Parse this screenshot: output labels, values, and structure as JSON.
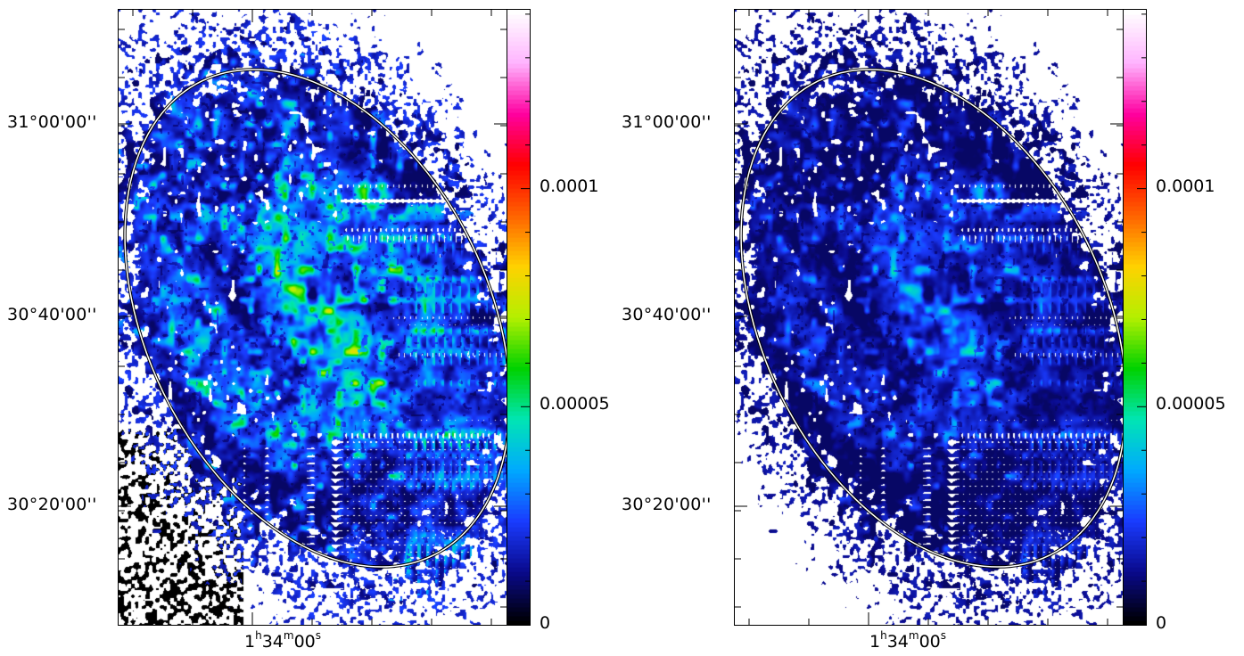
{
  "panels": [
    {
      "name": "left",
      "dec_ticks": [
        "31°00'00''",
        "30°40'00''",
        "30°20'00''"
      ],
      "ra_tick": {
        "h": "1",
        "hu": "h",
        "m": "34",
        "mu": "m",
        "s": "00",
        "su": "s"
      },
      "colorbar_ticks": [
        "0.0001",
        "0.00005",
        "0"
      ],
      "brightness": 1.0
    },
    {
      "name": "right",
      "dec_ticks": [
        "31°00'00''",
        "30°40'00''",
        "30°20'00''"
      ],
      "ra_tick": {
        "h": "1",
        "hu": "h",
        "m": "34",
        "mu": "m",
        "s": "00",
        "su": "s"
      },
      "colorbar_ticks": [
        "0.0001",
        "0.00005",
        "0"
      ],
      "brightness": 0.62
    }
  ],
  "colormap": [
    "#000000",
    "#0a0a8c",
    "#1a3cff",
    "#00aaff",
    "#00e6b4",
    "#00d200",
    "#b4f000",
    "#ffd200",
    "#ff6400",
    "#ff0000",
    "#ff00a0",
    "#ffb4ff",
    "#ffffff"
  ]
}
